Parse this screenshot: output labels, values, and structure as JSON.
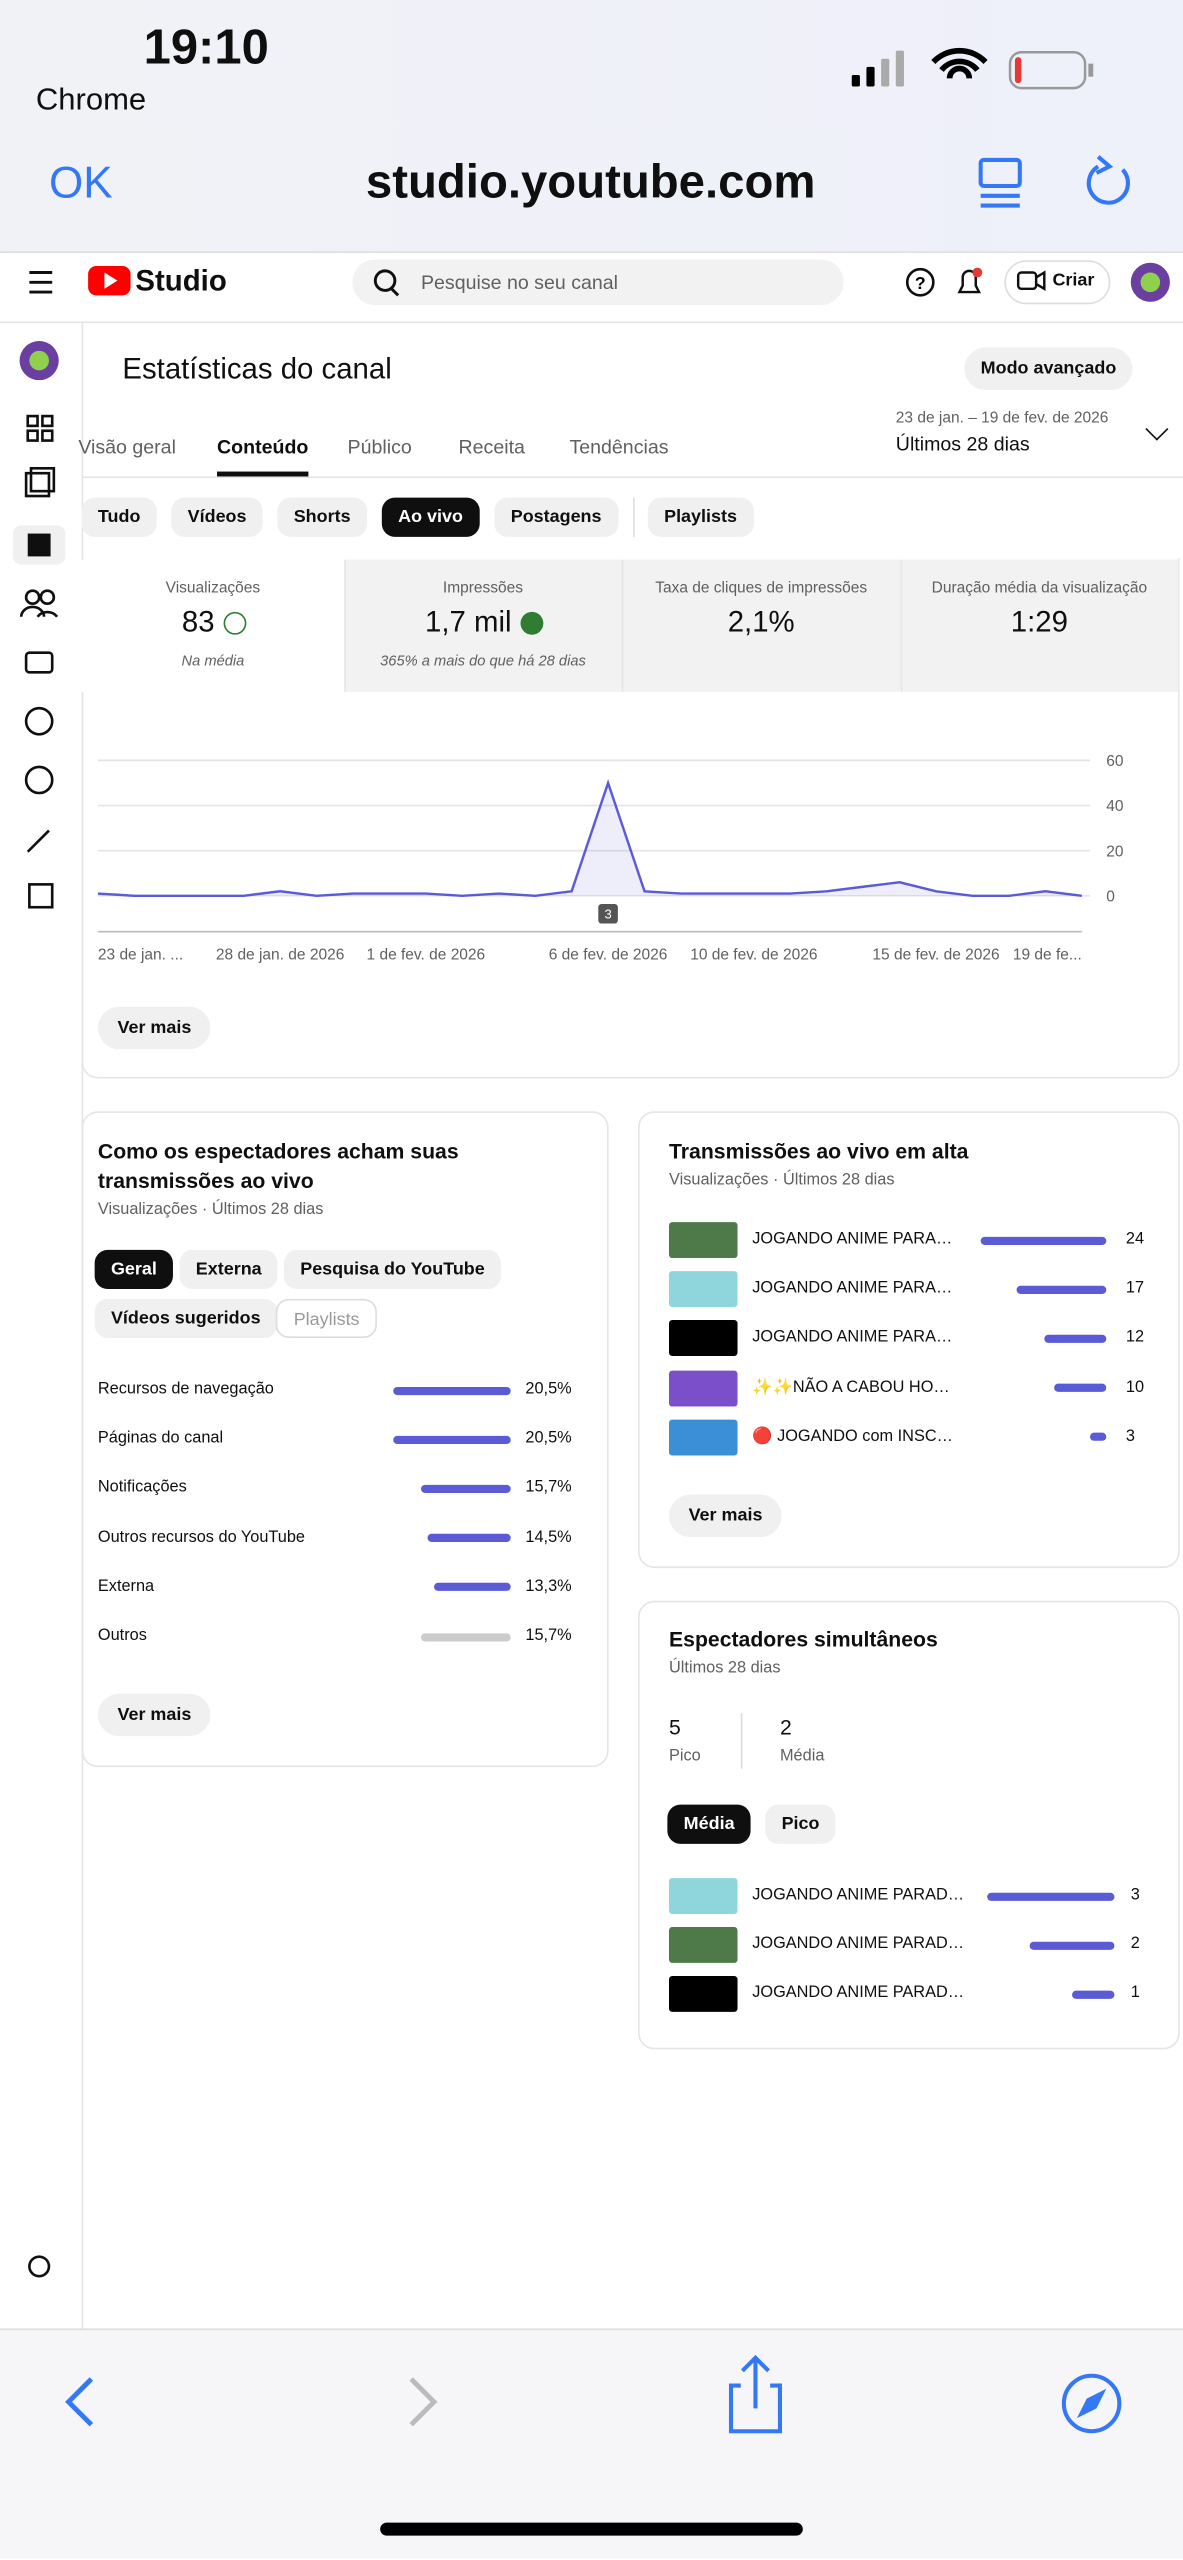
{
  "status": {
    "time": "19:10",
    "back": "Chrome"
  },
  "browser": {
    "done": "OK",
    "url": "studio.youtube.com"
  },
  "header": {
    "logo": "Studio",
    "search": "Pesquise no seu canal",
    "create": "Criar"
  },
  "page": {
    "title": "Estatísticas do canal",
    "advanced": "Modo avançado",
    "tabs": [
      {
        "label": "Visão geral",
        "selected": false
      },
      {
        "label": "Conteúdo",
        "selected": true
      },
      {
        "label": "Público",
        "selected": false
      },
      {
        "label": "Receita",
        "selected": false
      },
      {
        "label": "Tendências",
        "selected": false
      }
    ],
    "date_range": {
      "dates": "23 de jan. – 19 de fev. de 2026",
      "period": "Últimos 28 dias"
    },
    "filters": [
      {
        "label": "Tudo",
        "selected": false
      },
      {
        "label": "Vídeos",
        "selected": false
      },
      {
        "label": "Shorts",
        "selected": false
      },
      {
        "label": "Ao vivo",
        "selected": true
      },
      {
        "label": "Postagens",
        "selected": false
      },
      {
        "label": "Playlists",
        "selected": false
      }
    ],
    "metrics": [
      {
        "label": "Visualizações",
        "value": "83",
        "note": "Na média"
      },
      {
        "label": "Impressões",
        "value": "1,7 mil",
        "note": "365% a mais do que há 28 dias"
      },
      {
        "label": "Taxa de cliques de impressões",
        "value": "2,1%"
      },
      {
        "label": "Duração média da visualização",
        "value": "1:29"
      }
    ],
    "more": "Ver mais"
  },
  "chart": {
    "type": "line",
    "color": "#5b5bd6",
    "categories": [
      "23 de jan. ...",
      null,
      null,
      null,
      null,
      "28 de jan. de 2026",
      null,
      null,
      null,
      "1 de fev. de 2026",
      null,
      null,
      null,
      null,
      "6 de fev. de 2026",
      null,
      null,
      null,
      "10 de fev. de 2026",
      null,
      null,
      null,
      null,
      "15 de fev. de 2026",
      null,
      null,
      null,
      "19 de fe..."
    ],
    "values": [
      1,
      0,
      0,
      0,
      0,
      2,
      0,
      1,
      1,
      1,
      0,
      1,
      0,
      2,
      50,
      2,
      1,
      1,
      1,
      1,
      2,
      4,
      6,
      2,
      0,
      0,
      2,
      0
    ],
    "ylim": [
      0,
      60
    ],
    "yticks": [
      0,
      20,
      40,
      60
    ],
    "grid": true,
    "annotation": "3"
  },
  "discovery": {
    "title": "Como os espectadores acham suas transmissões ao vivo",
    "subtitle": "Visualizações · Últimos 28 dias",
    "filters": [
      {
        "label": "Geral",
        "selected": true
      },
      {
        "label": "Externa",
        "selected": false
      },
      {
        "label": "Pesquisa do YouTube",
        "selected": false
      },
      {
        "label": "Vídeos sugeridos",
        "selected": false
      },
      {
        "label": "Playlists",
        "selected": false,
        "disabled": true
      }
    ],
    "rows": [
      {
        "label": "Recursos de navegação",
        "value": 20.5,
        "value_label": "20,5%",
        "color": "#5b5bd6"
      },
      {
        "label": "Páginas do canal",
        "value": 20.5,
        "value_label": "20,5%",
        "color": "#5b5bd6"
      },
      {
        "label": "Notificações",
        "value": 15.7,
        "value_label": "15,7%",
        "color": "#5b5bd6"
      },
      {
        "label": "Outros recursos do YouTube",
        "value": 14.5,
        "value_label": "14,5%",
        "color": "#5b5bd6"
      },
      {
        "label": "Externa",
        "value": 13.3,
        "value_label": "13,3%",
        "color": "#5b5bd6"
      },
      {
        "label": "Outros",
        "value": 15.7,
        "value_label": "15,7%",
        "color": "#cccccc"
      }
    ],
    "more": "Ver mais"
  },
  "top_live": {
    "title": "Transmissões ao vivo em alta",
    "subtitle": "Visualizações · Últimos 28 dias",
    "rows": [
      {
        "title": "JOGANDO ANIME PARA…",
        "value": 24,
        "thumbnail": "#4e7a4a"
      },
      {
        "title": "JOGANDO ANIME PARA…",
        "value": 17,
        "thumbnail": "#8fd6dc"
      },
      {
        "title": "JOGANDO ANIME PARA…",
        "value": 12,
        "thumbnail": "#000000"
      },
      {
        "title": "✨✨NÃO A CABOU HO…",
        "value": 10,
        "thumbnail": "#7b4fc9"
      },
      {
        "title": "🔴 JOGANDO com INSC…",
        "value": 3,
        "thumbnail": "#3b8fd6"
      }
    ],
    "more": "Ver mais"
  },
  "concurrent": {
    "title": "Espectadores simultâneos",
    "subtitle": "Últimos 28 dias",
    "stats": [
      {
        "value": 5,
        "label": "Pico"
      },
      {
        "value": 2,
        "label": "Média"
      }
    ],
    "filters": [
      {
        "label": "Média",
        "selected": true
      },
      {
        "label": "Pico",
        "selected": false
      }
    ],
    "rows": [
      {
        "title": "JOGANDO ANIME PARAD…",
        "value": 3,
        "thumbnail": "#8fd6dc"
      },
      {
        "title": "JOGANDO ANIME PARAD…",
        "value": 2,
        "thumbnail": "#4e7a4a"
      },
      {
        "title": "JOGANDO ANIME PARAD…",
        "value": 1,
        "thumbnail": "#000000"
      }
    ]
  }
}
